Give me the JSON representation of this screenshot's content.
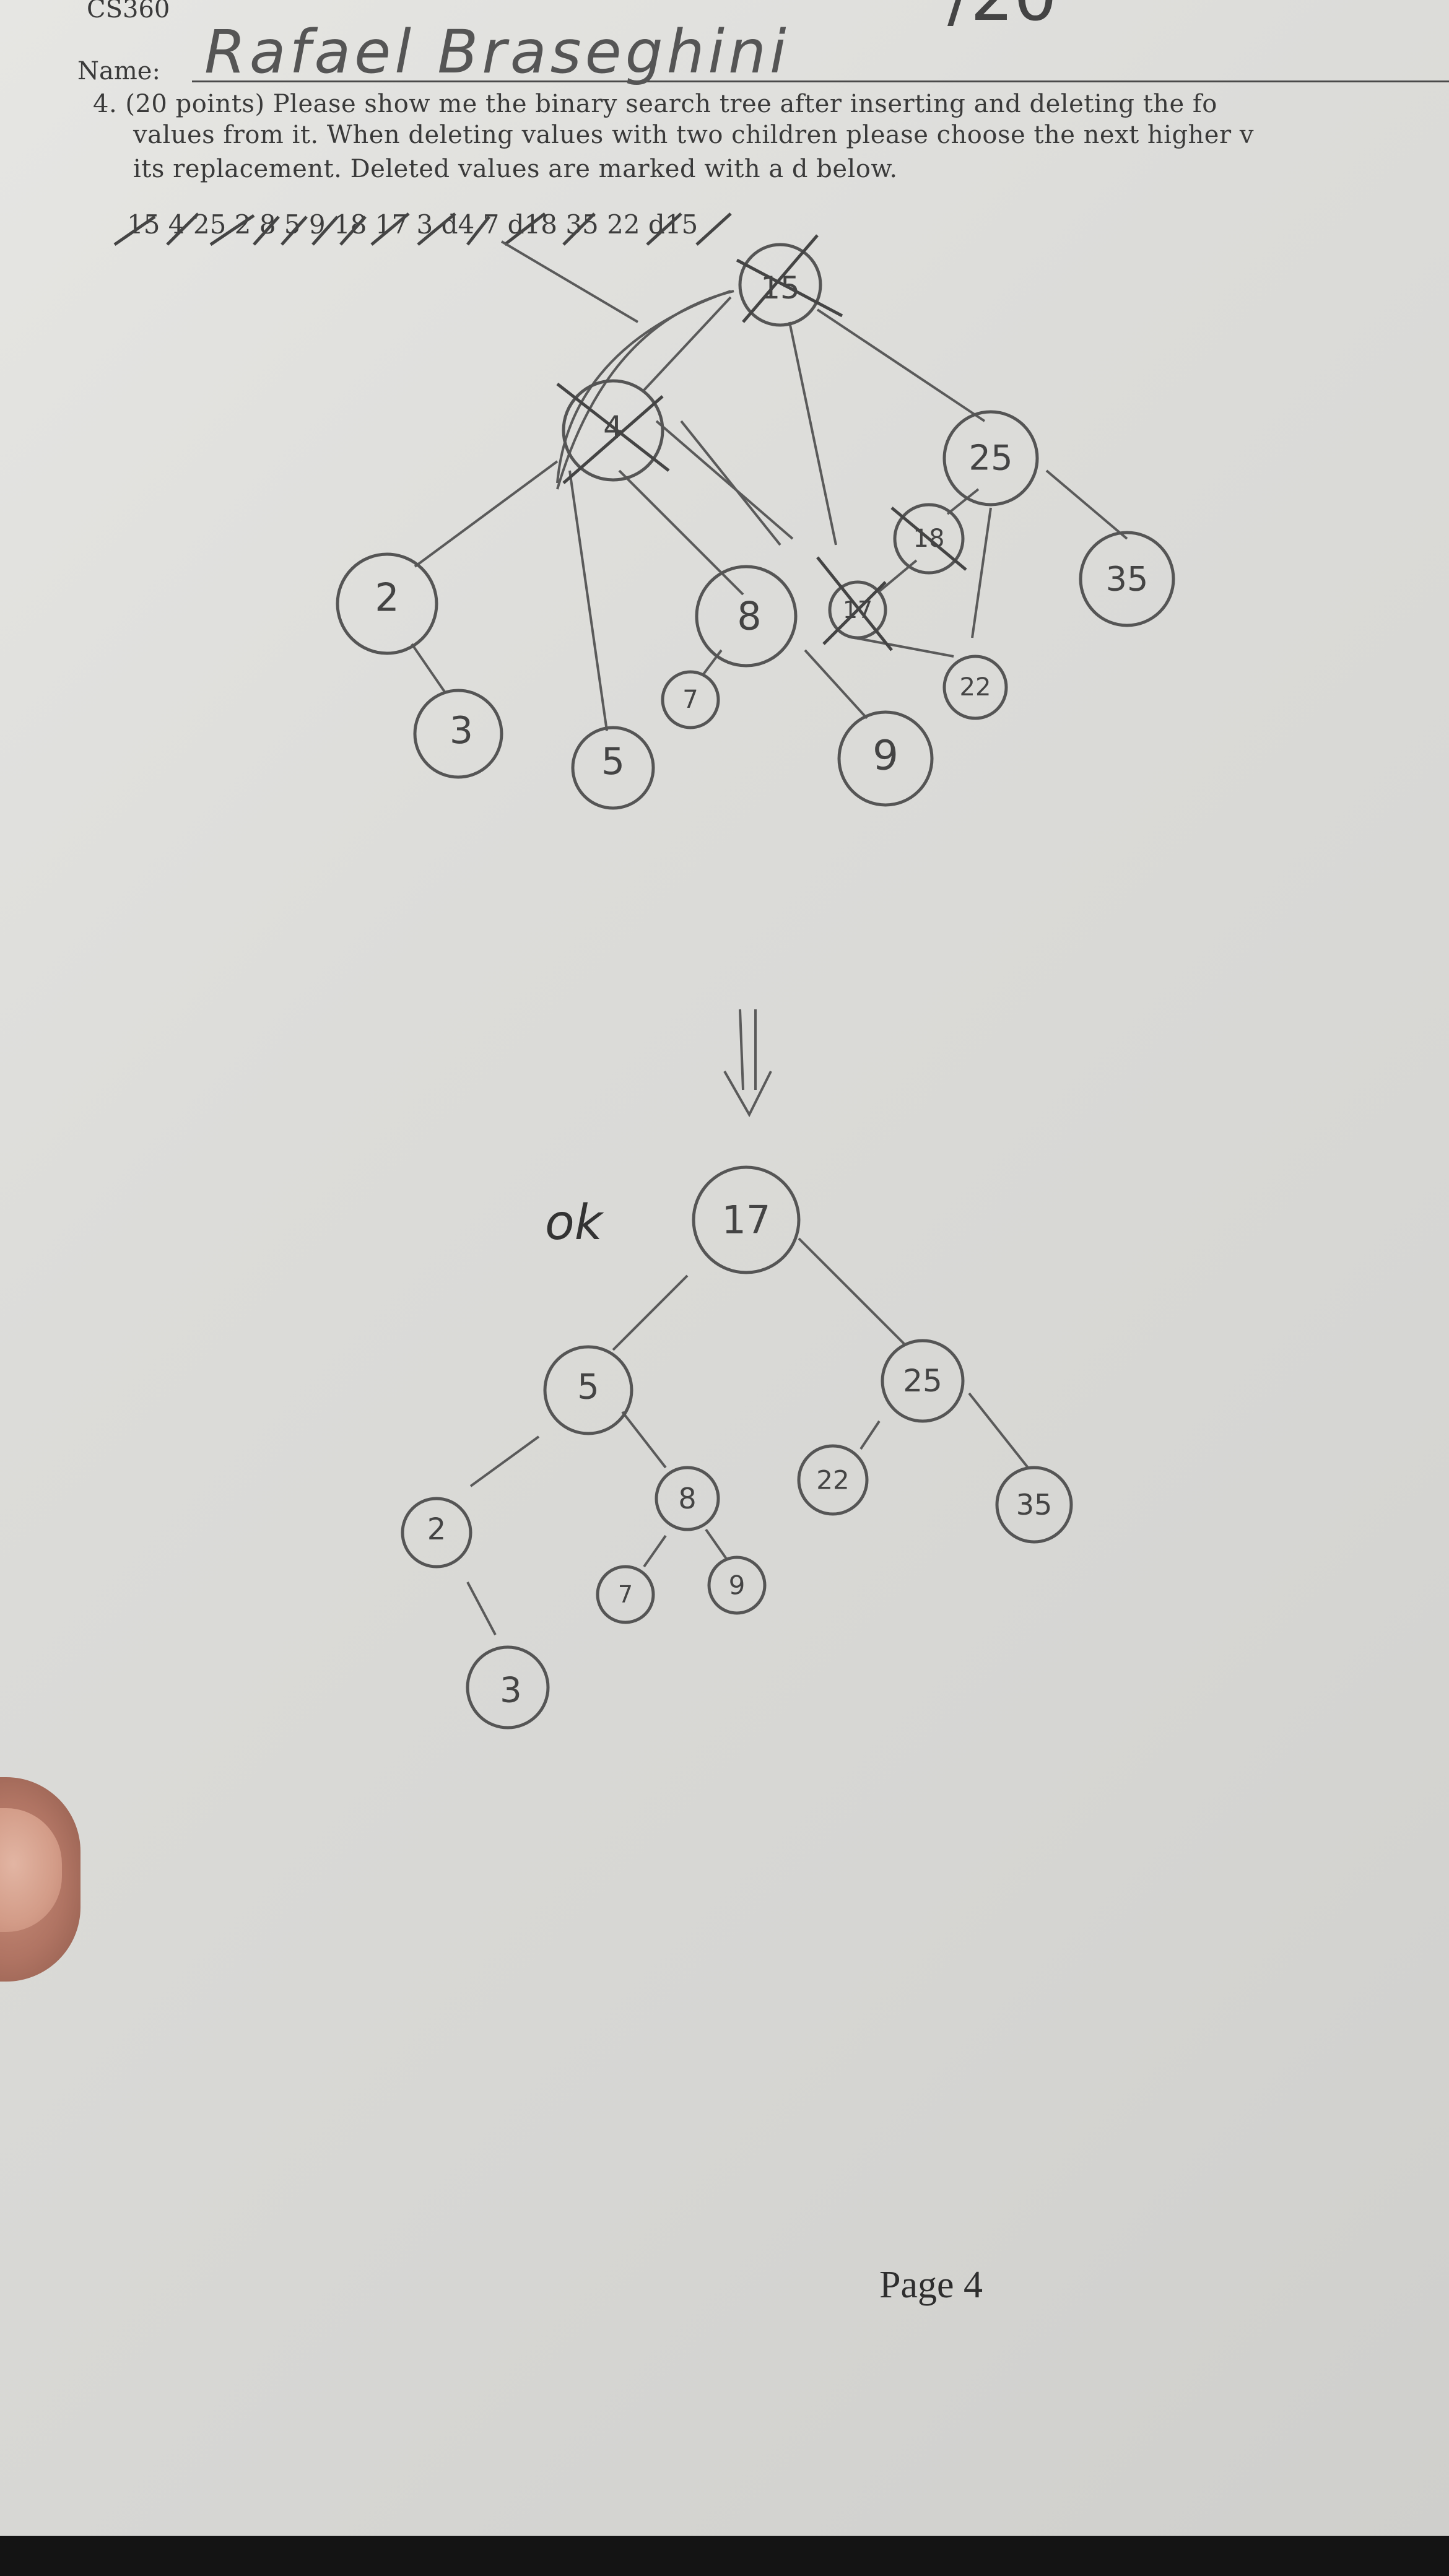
{
  "header": {
    "course": "CS360",
    "name_label": "Name:",
    "student_name": "Rafael Braseghini",
    "score": "/20"
  },
  "question": {
    "line1": "4. (20 points) Please show me the binary search tree after inserting and deleting the fo",
    "line2": "values from it. When deleting values with two children please choose the next higher v",
    "line3": "its replacement. Deleted values are marked with a d below.",
    "sequence": "15 4 25 2 8 5 9 18 17 3 d4 7 d18 35 22 d15"
  },
  "working_tree": {
    "nodes": [
      {
        "id": "root",
        "label": "15",
        "crossed": true
      },
      {
        "id": "n4",
        "label": "4",
        "crossed": true
      },
      {
        "id": "n25",
        "label": "25",
        "crossed": false
      },
      {
        "id": "n2",
        "label": "2",
        "crossed": false
      },
      {
        "id": "n3",
        "label": "3",
        "crossed": false
      },
      {
        "id": "n5",
        "label": "5",
        "crossed": false
      },
      {
        "id": "n8",
        "label": "8",
        "crossed": false
      },
      {
        "id": "n7",
        "label": "7",
        "crossed": false
      },
      {
        "id": "n9",
        "label": "9",
        "crossed": false
      },
      {
        "id": "n18",
        "label": "18",
        "crossed": true
      },
      {
        "id": "n17",
        "label": "17",
        "crossed": true
      },
      {
        "id": "n22",
        "label": "22",
        "crossed": false
      },
      {
        "id": "n35",
        "label": "35",
        "crossed": false
      }
    ]
  },
  "arrow_symbol": "⇓",
  "ok_mark": "ok",
  "final_tree": {
    "nodes": [
      {
        "id": "f17",
        "label": "17"
      },
      {
        "id": "f5",
        "label": "5"
      },
      {
        "id": "f25",
        "label": "25"
      },
      {
        "id": "f2",
        "label": "2"
      },
      {
        "id": "f8",
        "label": "8"
      },
      {
        "id": "f22",
        "label": "22"
      },
      {
        "id": "f35",
        "label": "35"
      },
      {
        "id": "f3",
        "label": "3"
      },
      {
        "id": "f7",
        "label": "7"
      },
      {
        "id": "f9",
        "label": "9"
      }
    ]
  },
  "footer": {
    "page": "Page 4"
  }
}
